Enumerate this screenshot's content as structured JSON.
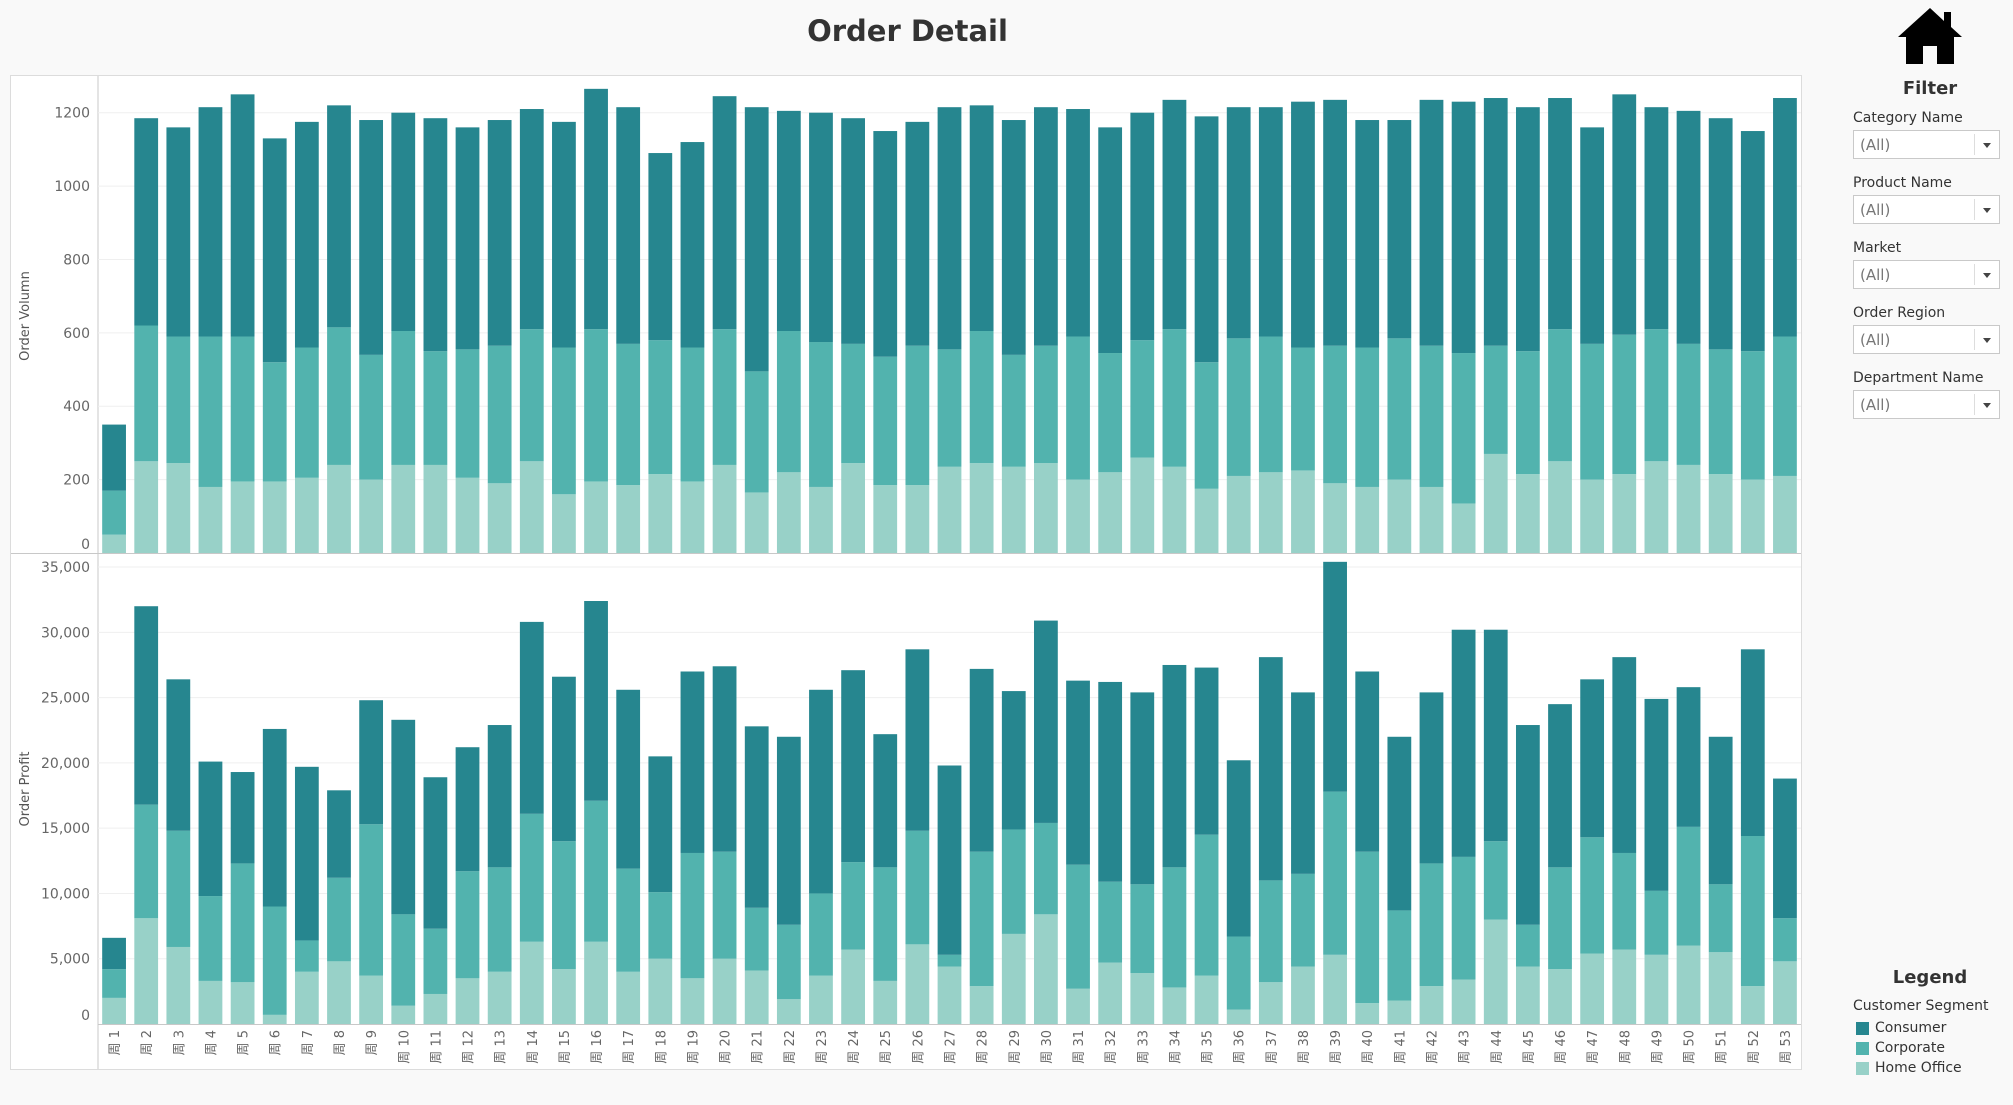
{
  "title": "Order Detail",
  "colors": {
    "consumer": "#26868f",
    "corporate": "#52b3ae",
    "home_office": "#98d1c8"
  },
  "filter": {
    "heading": "Filter",
    "items": [
      {
        "label": "Category Name",
        "value": "(All)"
      },
      {
        "label": "Product Name",
        "value": "(All)"
      },
      {
        "label": "Market",
        "value": "(All)"
      },
      {
        "label": "Order Region",
        "value": "(All)"
      },
      {
        "label": "Department Name",
        "value": "(All)"
      }
    ]
  },
  "legend": {
    "heading": "Legend",
    "subtitle": "Customer Segment",
    "items": [
      "Consumer",
      "Corporate",
      "Home Office"
    ]
  },
  "home_icon": "home-icon",
  "chart_data": [
    {
      "type": "bar",
      "stacked": true,
      "ylabel": "Order Volumn",
      "ylim": [
        0,
        1300
      ],
      "yticks": [
        0,
        200,
        400,
        600,
        800,
        1000,
        1200
      ],
      "ytick_labels": [
        "0",
        "200",
        "400",
        "600",
        "800",
        "1000",
        "1200"
      ],
      "categories": [
        "周 1",
        "周 2",
        "周 3",
        "周 4",
        "周 5",
        "周 6",
        "周 7",
        "周 8",
        "周 9",
        "周 10",
        "周 11",
        "周 12",
        "周 13",
        "周 14",
        "周 15",
        "周 16",
        "周 17",
        "周 18",
        "周 19",
        "周 20",
        "周 21",
        "周 22",
        "周 23",
        "周 24",
        "周 25",
        "周 26",
        "周 27",
        "周 28",
        "周 29",
        "周 30",
        "周 31",
        "周 32",
        "周 33",
        "周 34",
        "周 35",
        "周 36",
        "周 37",
        "周 38",
        "周 39",
        "周 40",
        "周 41",
        "周 42",
        "周 43",
        "周 44",
        "周 45",
        "周 46",
        "周 47",
        "周 48",
        "周 49",
        "周 50",
        "周 51",
        "周 52",
        "周 53"
      ],
      "series": [
        {
          "name": "Home Office",
          "values": [
            50,
            250,
            245,
            180,
            195,
            195,
            205,
            240,
            200,
            240,
            240,
            205,
            190,
            250,
            160,
            195,
            185,
            215,
            195,
            240,
            165,
            220,
            180,
            245,
            185,
            185,
            235,
            245,
            235,
            245,
            200,
            220,
            260,
            235,
            175,
            210,
            220,
            225,
            190,
            180,
            200,
            180,
            135,
            270,
            215,
            250,
            200,
            215,
            250,
            240,
            215,
            200,
            210
          ]
        },
        {
          "name": "Corporate",
          "values": [
            120,
            370,
            345,
            410,
            395,
            325,
            355,
            375,
            340,
            365,
            310,
            350,
            375,
            360,
            400,
            415,
            385,
            365,
            365,
            370,
            330,
            385,
            395,
            325,
            350,
            380,
            320,
            360,
            305,
            320,
            390,
            325,
            320,
            375,
            345,
            375,
            370,
            335,
            375,
            380,
            385,
            385,
            410,
            295,
            335,
            360,
            370,
            380,
            360,
            330,
            340,
            350,
            380
          ]
        },
        {
          "name": "Consumer",
          "values": [
            180,
            565,
            570,
            625,
            660,
            610,
            615,
            605,
            640,
            595,
            635,
            605,
            615,
            600,
            615,
            655,
            645,
            510,
            560,
            635,
            720,
            600,
            625,
            615,
            615,
            610,
            660,
            615,
            640,
            650,
            620,
            615,
            620,
            625,
            670,
            630,
            625,
            670,
            670,
            620,
            595,
            670,
            685,
            675,
            665,
            630,
            590,
            655,
            605,
            635,
            630,
            600,
            650
          ]
        }
      ]
    },
    {
      "type": "bar",
      "stacked": true,
      "ylabel": "Order Profit",
      "ylim": [
        0,
        36000
      ],
      "yticks": [
        0,
        5000,
        10000,
        15000,
        20000,
        25000,
        30000,
        35000
      ],
      "ytick_labels": [
        "0",
        "5,000",
        "10,000",
        "15,000",
        "20,000",
        "25,000",
        "30,000",
        "35,000"
      ],
      "categories": [
        "周 1",
        "周 2",
        "周 3",
        "周 4",
        "周 5",
        "周 6",
        "周 7",
        "周 8",
        "周 9",
        "周 10",
        "周 11",
        "周 12",
        "周 13",
        "周 14",
        "周 15",
        "周 16",
        "周 17",
        "周 18",
        "周 19",
        "周 20",
        "周 21",
        "周 22",
        "周 23",
        "周 24",
        "周 25",
        "周 26",
        "周 27",
        "周 28",
        "周 29",
        "周 30",
        "周 31",
        "周 32",
        "周 33",
        "周 34",
        "周 35",
        "周 36",
        "周 37",
        "周 38",
        "周 39",
        "周 40",
        "周 41",
        "周 42",
        "周 43",
        "周 44",
        "周 45",
        "周 46",
        "周 47",
        "周 48",
        "周 49",
        "周 50",
        "周 51",
        "周 52",
        "周 53"
      ],
      "series": [
        {
          "name": "Home Office",
          "values": [
            2000,
            8100,
            5900,
            3300,
            3200,
            700,
            4000,
            4800,
            3700,
            1400,
            2300,
            3500,
            4000,
            6300,
            4200,
            6300,
            4000,
            5000,
            3500,
            5000,
            4100,
            1900,
            3700,
            5700,
            3300,
            6100,
            4400,
            2900,
            6900,
            8400,
            2700,
            4700,
            3900,
            2800,
            3700,
            1100,
            3200,
            4400,
            5300,
            1600,
            1800,
            2900,
            3400,
            8000,
            4400,
            4200,
            5400,
            5700,
            5300,
            6000,
            5500,
            2900,
            4800
          ]
        },
        {
          "name": "Corporate",
          "values": [
            2200,
            8700,
            8900,
            6500,
            9100,
            8300,
            2400,
            6400,
            11600,
            7000,
            5000,
            8200,
            8000,
            9800,
            9800,
            10800,
            7900,
            5100,
            9600,
            8200,
            4800,
            5700,
            6300,
            6700,
            8700,
            8700,
            900,
            10300,
            8000,
            7000,
            9500,
            6200,
            6800,
            9200,
            10800,
            5600,
            7800,
            7100,
            12500,
            11600,
            6900,
            9400,
            9400,
            6000,
            3200,
            7800,
            8900,
            7400,
            4900,
            9100,
            5200,
            11500,
            3300
          ]
        },
        {
          "name": "Consumer",
          "values": [
            2400,
            15200,
            11600,
            10300,
            7000,
            13600,
            13300,
            6700,
            9500,
            14900,
            11600,
            9500,
            10900,
            14700,
            12600,
            15300,
            13700,
            10400,
            13900,
            14200,
            13900,
            14400,
            15600,
            14700,
            10200,
            13900,
            14500,
            14000,
            10600,
            15500,
            14100,
            15300,
            14700,
            15500,
            12800,
            13500,
            17100,
            13900,
            17600,
            13800,
            13300,
            13100,
            17400,
            16200,
            15300,
            12500,
            12100,
            15000,
            14700,
            10700,
            11300,
            14300,
            10700
          ]
        }
      ]
    }
  ]
}
